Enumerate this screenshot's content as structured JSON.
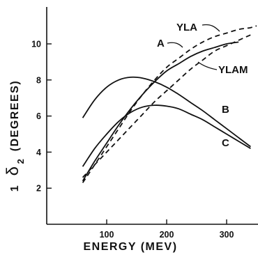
{
  "chart_data": {
    "type": "line",
    "title": "",
    "xlabel": "ENERGY (MEV)",
    "ylabel_prefix": "1",
    "ylabel_symbol": "δ",
    "ylabel_subscript": "2",
    "ylabel_units": "(DEGREES)",
    "xlim": [
      0,
      350
    ],
    "ylim": [
      0,
      12
    ],
    "xticks": [
      100,
      200,
      300
    ],
    "xtick_labels": [
      "100",
      "200",
      "300"
    ],
    "yticks": [
      2,
      4,
      6,
      8,
      10
    ],
    "ytick_labels": [
      "2",
      "4",
      "6",
      "8",
      "10"
    ],
    "grid": false,
    "legend": "none (curves labeled directly)",
    "series": [
      {
        "name": "A",
        "style": "solid",
        "x": [
          60,
          80,
          100,
          120,
          140,
          160,
          180,
          200,
          220,
          240,
          260,
          280,
          300,
          320
        ],
        "y": [
          2.4,
          3.5,
          4.5,
          5.5,
          6.4,
          7.2,
          7.9,
          8.5,
          8.9,
          9.3,
          9.6,
          9.8,
          10.0,
          10.1
        ]
      },
      {
        "name": "B",
        "style": "solid",
        "x": [
          60,
          80,
          100,
          120,
          140,
          160,
          180,
          200,
          220,
          240,
          260,
          280,
          300,
          320,
          340
        ],
        "y": [
          5.9,
          6.9,
          7.6,
          8.0,
          8.15,
          8.1,
          7.9,
          7.6,
          7.2,
          6.75,
          6.3,
          5.8,
          5.3,
          4.8,
          4.3
        ]
      },
      {
        "name": "C",
        "style": "solid",
        "x": [
          60,
          80,
          100,
          120,
          140,
          160,
          180,
          200,
          220,
          240,
          260,
          280,
          300,
          320,
          340
        ],
        "y": [
          3.2,
          4.2,
          5.0,
          5.7,
          6.2,
          6.5,
          6.6,
          6.55,
          6.4,
          6.1,
          5.8,
          5.4,
          5.0,
          4.6,
          4.2
        ]
      },
      {
        "name": "YLA",
        "style": "dashed",
        "x": [
          60,
          80,
          100,
          120,
          140,
          160,
          180,
          200,
          220,
          240,
          260,
          280,
          300,
          320,
          340,
          350
        ],
        "y": [
          2.3,
          3.3,
          4.3,
          5.3,
          6.3,
          7.2,
          8.0,
          8.7,
          9.2,
          9.7,
          10.1,
          10.4,
          10.6,
          10.8,
          10.9,
          11.0
        ]
      },
      {
        "name": "YLAM",
        "style": "dashed",
        "x": [
          60,
          80,
          100,
          120,
          140,
          160,
          180,
          200,
          220,
          240,
          260,
          280,
          300,
          320,
          340
        ],
        "y": [
          2.6,
          3.3,
          4.0,
          4.7,
          5.4,
          6.1,
          6.8,
          7.4,
          8.0,
          8.6,
          9.1,
          9.6,
          9.9,
          10.2,
          10.5
        ]
      }
    ],
    "annotations": [
      {
        "series": "YLA",
        "text": "YLA"
      },
      {
        "series": "A",
        "text": "A"
      },
      {
        "series": "YLAM",
        "text": "YLAM"
      },
      {
        "series": "B",
        "text": "B"
      },
      {
        "series": "C",
        "text": "C"
      }
    ]
  }
}
